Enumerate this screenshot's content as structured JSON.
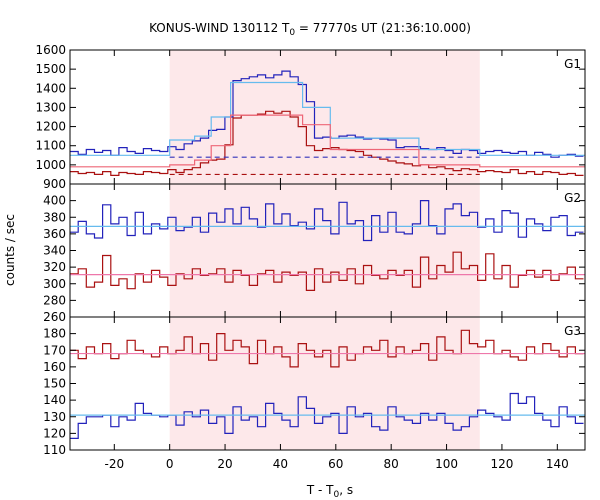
{
  "chart_data": {
    "type": "line",
    "title": "KONUS-WIND 130112 T",
    "title_sub": "0",
    "title_rest": " = 77770s UT (21:36:10.000)",
    "xlabel": "T - T",
    "xlabel_sub": "0",
    "xlabel_rest": ", s",
    "ylabel": "counts / sec",
    "xlim": [
      -36,
      150
    ],
    "x_ticks": [
      -20,
      0,
      20,
      40,
      60,
      80,
      100,
      120,
      140
    ],
    "highlight_interval": [
      0,
      112
    ],
    "highlight_color": "#fde8ea",
    "bin_width": 2.944,
    "x_start": -36,
    "panels": [
      {
        "name": "G1",
        "ylim": [
          900,
          1600
        ],
        "y_ticks": [
          900,
          1000,
          1100,
          1200,
          1300,
          1400,
          1500,
          1600
        ],
        "series": [
          {
            "color": "#2222bb",
            "style": "step",
            "values": [
              1070,
              1055,
              1080,
              1065,
              1075,
              1050,
              1090,
              1070,
              1060,
              1085,
              1075,
              1070,
              1095,
              1080,
              1110,
              1125,
              1140,
              1180,
              1185,
              1250,
              1440,
              1450,
              1460,
              1470,
              1455,
              1470,
              1490,
              1460,
              1420,
              1330,
              1140,
              1145,
              1140,
              1150,
              1155,
              1145,
              1135,
              1140,
              1135,
              1130,
              1090,
              1095,
              1095,
              1085,
              1080,
              1090,
              1075,
              1060,
              1080,
              1075,
              1060,
              1070,
              1075,
              1065,
              1060,
              1070,
              1050,
              1065,
              1055,
              1040,
              1050,
              1055,
              1045
            ]
          },
          {
            "color": "#aa1111",
            "style": "step",
            "values": [
              965,
              955,
              960,
              950,
              965,
              945,
              960,
              955,
              950,
              965,
              960,
              955,
              975,
              960,
              975,
              985,
              1010,
              1025,
              1030,
              1105,
              1245,
              1260,
              1260,
              1265,
              1280,
              1270,
              1280,
              1250,
              1200,
              1100,
              1075,
              1085,
              1090,
              1080,
              1075,
              1070,
              1050,
              1040,
              1030,
              1020,
              1010,
              1005,
              995,
              1000,
              985,
              990,
              980,
              970,
              980,
              975,
              965,
              970,
              965,
              960,
              975,
              955,
              965,
              950,
              965,
              960,
              950,
              955,
              945
            ]
          },
          {
            "color": "#66bbee",
            "style": "fit",
            "points": [
              [
                -36,
                1050
              ],
              [
                0,
                1050
              ],
              [
                0,
                1130
              ],
              [
                9,
                1130
              ],
              [
                9,
                1150
              ],
              [
                15,
                1150
              ],
              [
                15,
                1250
              ],
              [
                22,
                1250
              ],
              [
                22,
                1430
              ],
              [
                48,
                1430
              ],
              [
                48,
                1300
              ],
              [
                58,
                1300
              ],
              [
                58,
                1140
              ],
              [
                90,
                1140
              ],
              [
                90,
                1080
              ],
              [
                112,
                1080
              ],
              [
                112,
                1050
              ],
              [
                150,
                1050
              ]
            ]
          },
          {
            "color": "#ee6677",
            "style": "fit",
            "points": [
              [
                -36,
                990
              ],
              [
                0,
                990
              ],
              [
                0,
                1000
              ],
              [
                9,
                1000
              ],
              [
                9,
                1025
              ],
              [
                15,
                1025
              ],
              [
                15,
                1100
              ],
              [
                22,
                1100
              ],
              [
                22,
                1260
              ],
              [
                48,
                1260
              ],
              [
                48,
                1210
              ],
              [
                58,
                1210
              ],
              [
                58,
                1080
              ],
              [
                90,
                1080
              ],
              [
                90,
                1000
              ],
              [
                112,
                1000
              ],
              [
                112,
                990
              ],
              [
                150,
                990
              ]
            ]
          },
          {
            "color": "#3333bb",
            "style": "dashed",
            "level": 1040,
            "x_range": [
              0,
              112
            ]
          },
          {
            "color": "#aa1111",
            "style": "dashed",
            "level": 950,
            "x_range": [
              0,
              112
            ]
          }
        ]
      },
      {
        "name": "G2",
        "ylim": [
          260,
          420
        ],
        "y_ticks": [
          260,
          280,
          300,
          320,
          340,
          360,
          380,
          400
        ],
        "series": [
          {
            "color": "#2222bb",
            "style": "step",
            "values": [
              362,
              375,
              360,
              355,
              395,
              372,
              380,
              358,
              386,
              360,
              372,
              366,
              380,
              364,
              368,
              380,
              362,
              385,
              374,
              390,
              372,
              392,
              378,
              368,
              396,
              372,
              384,
              370,
              374,
              366,
              390,
              376,
              360,
              398,
              372,
              376,
              352,
              382,
              362,
              386,
              362,
              360,
              372,
              400,
              370,
              360,
              390,
              396,
              382,
              386,
              368,
              378,
              362,
              388,
              385,
              356,
              378,
              372,
              364,
              380,
              382,
              358,
              362
            ]
          },
          {
            "color": "#aa1111",
            "style": "step",
            "values": [
              312,
              318,
              296,
              302,
              334,
              298,
              306,
              294,
              312,
              302,
              316,
              308,
              298,
              312,
              306,
              318,
              310,
              312,
              318,
              302,
              316,
              310,
              298,
              312,
              316,
              302,
              314,
              310,
              314,
              292,
              318,
              302,
              314,
              304,
              318,
              300,
              322,
              310,
              306,
              316,
              310,
              316,
              296,
              332,
              306,
              322,
              314,
              338,
              318,
              322,
              304,
              336,
              306,
              322,
              296,
              310,
              316,
              308,
              316,
              304,
              312,
              320,
              306
            ]
          },
          {
            "color": "#66bbee",
            "style": "level",
            "level": 369
          },
          {
            "color": "#ee77aa",
            "style": "level",
            "level": 311
          }
        ]
      },
      {
        "name": "G3",
        "ylim": [
          110,
          190
        ],
        "y_ticks": [
          110,
          120,
          130,
          140,
          150,
          160,
          170,
          180
        ],
        "series": [
          {
            "color": "#aa1111",
            "style": "step",
            "values": [
              170,
              165,
              172,
              168,
              174,
              165,
              168,
              176,
              170,
              168,
              166,
              172,
              168,
              170,
              178,
              168,
              174,
              164,
              180,
              170,
              176,
              172,
              162,
              176,
              168,
              172,
              166,
              160,
              174,
              170,
              166,
              170,
              160,
              172,
              164,
              168,
              172,
              170,
              176,
              166,
              172,
              168,
              170,
              174,
              164,
              178,
              170,
              168,
              182,
              174,
              172,
              176,
              168,
              170,
              166,
              164,
              172,
              168,
              174,
              170,
              166,
              172,
              168
            ]
          },
          {
            "color": "#2222bb",
            "style": "step",
            "values": [
              117,
              126,
              130,
              130,
              131,
              124,
              130,
              128,
              138,
              132,
              131,
              130,
              131,
              125,
              133,
              130,
              134,
              126,
              130,
              120,
              136,
              128,
              130,
              124,
              138,
              132,
              128,
              124,
              142,
              135,
              126,
              130,
              132,
              120,
              136,
              130,
              132,
              124,
              122,
              136,
              130,
              128,
              126,
              132,
              128,
              132,
              126,
              122,
              124,
              130,
              134,
              132,
              130,
              128,
              144,
              138,
              142,
              132,
              128,
              124,
              136,
              130,
              126
            ]
          },
          {
            "color": "#ee77aa",
            "style": "level",
            "level": 168
          },
          {
            "color": "#66bbee",
            "style": "level",
            "level": 131
          }
        ]
      }
    ]
  }
}
